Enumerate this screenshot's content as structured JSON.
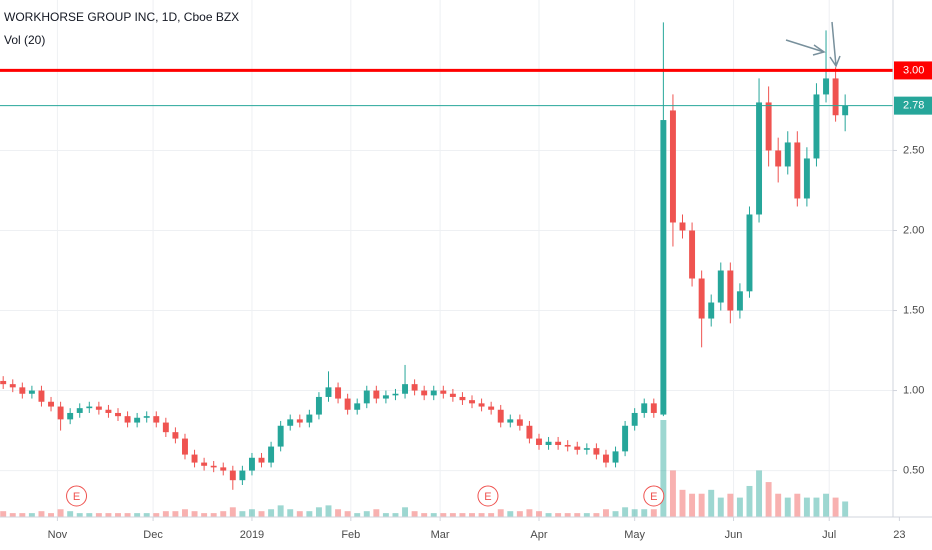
{
  "chart_data": {
    "type": "candlestick",
    "title": "WORKHORSE GROUP INC, 1D, Cboe BZX",
    "subtitle": "Vol (20)",
    "up_color": "#26a69a",
    "down_color": "#ef5350",
    "grid": true,
    "xlim": [
      13,
      293
    ],
    "ylim": [
      0.21,
      3.44
    ],
    "xticks": [
      {
        "value": 31,
        "label": "Nov"
      },
      {
        "value": 61,
        "label": "Dec"
      },
      {
        "value": 92,
        "label": "2019"
      },
      {
        "value": 123,
        "label": "Feb"
      },
      {
        "value": 151,
        "label": "Mar"
      },
      {
        "value": 182,
        "label": "Apr"
      },
      {
        "value": 212,
        "label": "May"
      },
      {
        "value": 243,
        "label": "Jun"
      },
      {
        "value": 273,
        "label": "Jul"
      },
      {
        "value": 295,
        "label": "23"
      }
    ],
    "yticks": [
      {
        "value": 0.5,
        "label": "0.50"
      },
      {
        "value": 1,
        "label": "1.00"
      },
      {
        "value": 1.5,
        "label": "1.50"
      },
      {
        "value": 2,
        "label": "2.00"
      },
      {
        "value": 2.5,
        "label": "2.50"
      }
    ],
    "levels": [
      {
        "value": 3,
        "label": "3.00",
        "color": "#ff0000"
      },
      {
        "value": 2.78,
        "color": "#26a69a"
      }
    ],
    "earnings": {
      "label": "E",
      "x": [
        37,
        166,
        218
      ]
    },
    "x": [
      14,
      17,
      20,
      23,
      26,
      29,
      32,
      35,
      38,
      41,
      44,
      47,
      50,
      53,
      56,
      59,
      62,
      65,
      68,
      71,
      74,
      77,
      80,
      83,
      86,
      89,
      92,
      95,
      98,
      101,
      104,
      107,
      110,
      113,
      116,
      119,
      122,
      125,
      128,
      131,
      134,
      137,
      140,
      143,
      146,
      149,
      152,
      155,
      158,
      161,
      164,
      167,
      170,
      173,
      176,
      179,
      182,
      185,
      188,
      191,
      194,
      197,
      200,
      203,
      206,
      209,
      212,
      215,
      218,
      221,
      224,
      227,
      230,
      233,
      236,
      239,
      242,
      245,
      248,
      251,
      254,
      257,
      260,
      263,
      266,
      269,
      272,
      275,
      278
    ],
    "open": [
      1.06,
      1.04,
      1.02,
      0.98,
      1.0,
      0.93,
      0.9,
      0.82,
      0.86,
      0.89,
      0.9,
      0.88,
      0.86,
      0.84,
      0.8,
      0.83,
      0.84,
      0.8,
      0.74,
      0.7,
      0.6,
      0.55,
      0.53,
      0.52,
      0.5,
      0.44,
      0.5,
      0.58,
      0.55,
      0.65,
      0.78,
      0.82,
      0.8,
      0.85,
      0.96,
      1.02,
      0.95,
      0.88,
      0.92,
      1.0,
      0.95,
      0.97,
      0.98,
      1.04,
      1.0,
      0.97,
      1.0,
      0.98,
      0.96,
      0.94,
      0.92,
      0.9,
      0.88,
      0.8,
      0.82,
      0.78,
      0.7,
      0.66,
      0.68,
      0.66,
      0.65,
      0.63,
      0.64,
      0.6,
      0.55,
      0.62,
      0.78,
      0.86,
      0.92,
      0.85,
      2.75,
      2.05,
      2.0,
      1.7,
      1.45,
      1.55,
      1.75,
      1.5,
      1.62,
      2.1,
      2.8,
      2.5,
      2.4,
      2.55,
      2.2,
      2.45,
      2.85,
      2.95,
      2.72
    ],
    "high": [
      1.09,
      1.07,
      1.05,
      1.03,
      1.03,
      0.96,
      0.93,
      0.89,
      0.92,
      0.93,
      0.93,
      0.91,
      0.89,
      0.87,
      0.86,
      0.87,
      0.87,
      0.83,
      0.77,
      0.73,
      0.63,
      0.58,
      0.56,
      0.55,
      0.53,
      0.53,
      0.61,
      0.61,
      0.68,
      0.81,
      0.85,
      0.85,
      0.88,
      0.99,
      1.12,
      1.05,
      0.98,
      0.95,
      1.03,
      1.03,
      1.0,
      1.01,
      1.16,
      1.07,
      1.03,
      1.03,
      1.03,
      1.01,
      0.99,
      0.97,
      0.95,
      0.93,
      0.91,
      0.85,
      0.85,
      0.81,
      0.73,
      0.71,
      0.71,
      0.69,
      0.68,
      0.67,
      0.67,
      0.63,
      0.65,
      0.81,
      0.89,
      0.95,
      0.95,
      3.3,
      2.85,
      2.1,
      2.05,
      1.75,
      1.6,
      1.8,
      1.8,
      1.67,
      2.15,
      2.95,
      2.9,
      2.58,
      2.62,
      2.62,
      2.52,
      2.92,
      3.25,
      3.02,
      2.85
    ],
    "low": [
      1.01,
      0.99,
      0.95,
      0.95,
      0.9,
      0.87,
      0.75,
      0.79,
      0.83,
      0.86,
      0.85,
      0.83,
      0.81,
      0.77,
      0.77,
      0.8,
      0.77,
      0.71,
      0.67,
      0.57,
      0.52,
      0.5,
      0.49,
      0.47,
      0.38,
      0.41,
      0.47,
      0.52,
      0.52,
      0.62,
      0.75,
      0.77,
      0.77,
      0.82,
      0.93,
      0.92,
      0.85,
      0.85,
      0.89,
      0.92,
      0.92,
      0.94,
      0.95,
      0.97,
      0.94,
      0.94,
      0.95,
      0.93,
      0.91,
      0.89,
      0.87,
      0.85,
      0.77,
      0.77,
      0.75,
      0.67,
      0.63,
      0.63,
      0.63,
      0.62,
      0.6,
      0.6,
      0.57,
      0.52,
      0.52,
      0.59,
      0.75,
      0.83,
      0.83,
      0.84,
      1.9,
      1.95,
      1.65,
      1.27,
      1.4,
      1.5,
      1.42,
      1.45,
      1.58,
      2.05,
      2.4,
      2.3,
      2.35,
      2.15,
      2.15,
      2.4,
      2.8,
      2.68,
      2.62
    ],
    "close": [
      1.04,
      1.02,
      0.98,
      1.0,
      0.93,
      0.9,
      0.82,
      0.86,
      0.89,
      0.9,
      0.88,
      0.86,
      0.84,
      0.8,
      0.83,
      0.84,
      0.8,
      0.74,
      0.7,
      0.6,
      0.55,
      0.53,
      0.52,
      0.5,
      0.44,
      0.5,
      0.58,
      0.55,
      0.65,
      0.78,
      0.82,
      0.8,
      0.85,
      0.96,
      1.02,
      0.95,
      0.88,
      0.92,
      1.0,
      0.95,
      0.97,
      0.98,
      1.04,
      1.0,
      0.97,
      1.0,
      0.98,
      0.96,
      0.94,
      0.92,
      0.9,
      0.88,
      0.8,
      0.82,
      0.78,
      0.7,
      0.66,
      0.68,
      0.66,
      0.65,
      0.63,
      0.64,
      0.6,
      0.55,
      0.62,
      0.78,
      0.86,
      0.92,
      0.86,
      2.69,
      2.05,
      2.0,
      1.7,
      1.45,
      1.55,
      1.75,
      1.5,
      1.62,
      2.1,
      2.8,
      2.5,
      2.4,
      2.55,
      2.2,
      2.45,
      2.85,
      2.95,
      2.72,
      2.78
    ],
    "volume": [
      1.5,
      1,
      1,
      1,
      1.5,
      1,
      2,
      1.5,
      1,
      1,
      1,
      1,
      1,
      1,
      1,
      1,
      1,
      1.5,
      1.5,
      2,
      1.5,
      1,
      1,
      1.5,
      2.5,
      1.5,
      2,
      1.5,
      2,
      3,
      2,
      1.5,
      1.5,
      2.5,
      3,
      2,
      1.5,
      1,
      1.5,
      2,
      1,
      1,
      2.5,
      1.5,
      1,
      1,
      1,
      1,
      1,
      1,
      1,
      1,
      2,
      1.5,
      1.5,
      2,
      1.5,
      1,
      1,
      1,
      1,
      1,
      1,
      2,
      1.5,
      2.5,
      2,
      2,
      2,
      25,
      12,
      7,
      6,
      6,
      7,
      5,
      6,
      5,
      8,
      12,
      9,
      6,
      5,
      6,
      5,
      5,
      6,
      5,
      4
    ]
  }
}
